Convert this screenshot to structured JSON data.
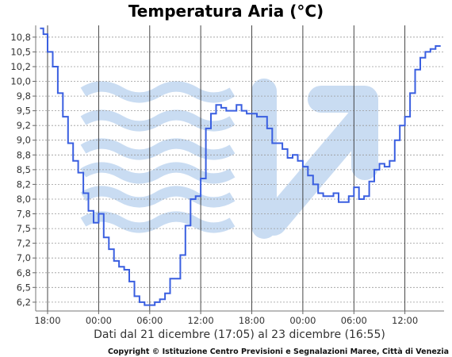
{
  "chart_data": {
    "type": "line",
    "title": "Temperatura Aria (°C)",
    "xlabel": "Dati dal 21 dicembre (17:05) al 23 dicembre (16:55)",
    "ylabel": "",
    "copyright": "Copyright © Istituzione Centro Previsioni e Segnalazioni Maree, Città di Venezia",
    "ylim": [
      6.05,
      10.9
    ],
    "xlim_hours": [
      16.6,
      64.6
    ],
    "y_ticks": [
      "6,2",
      "6,5",
      "6,8",
      "7,0",
      "7,2",
      "7,5",
      "7,8",
      "8,0",
      "8,2",
      "8,5",
      "8,8",
      "9,0",
      "9,2",
      "9,5",
      "9,8",
      "10,0",
      "10,2",
      "10,5",
      "10,8"
    ],
    "y_tick_values": [
      6.2,
      6.45,
      6.7,
      6.95,
      7.2,
      7.45,
      7.7,
      7.95,
      8.2,
      8.45,
      8.7,
      8.95,
      9.2,
      9.45,
      9.7,
      9.95,
      10.2,
      10.45,
      10.7
    ],
    "x_ticks": [
      {
        "label": "18:00",
        "hour": 18
      },
      {
        "label": "00:00",
        "hour": 24
      },
      {
        "label": "06:00",
        "hour": 30
      },
      {
        "label": "12:00",
        "hour": 36
      },
      {
        "label": "18:00",
        "hour": 42
      },
      {
        "label": "00:00",
        "hour": 48
      },
      {
        "label": "06:00",
        "hour": 54
      },
      {
        "label": "12:00",
        "hour": 60
      }
    ],
    "grid": true,
    "series": [
      {
        "color": "#3a5fe0",
        "x": [
          17.1,
          17.5,
          18.0,
          18.6,
          19.2,
          19.8,
          20.4,
          21.0,
          21.6,
          22.2,
          22.8,
          23.4,
          24.0,
          24.6,
          25.2,
          25.8,
          26.4,
          27.0,
          27.6,
          28.2,
          28.8,
          29.4,
          30.0,
          30.6,
          31.2,
          31.8,
          32.4,
          33.0,
          33.6,
          34.2,
          34.8,
          35.4,
          36.0,
          36.6,
          37.2,
          37.8,
          38.4,
          39.0,
          39.6,
          40.2,
          40.8,
          41.4,
          42.0,
          42.6,
          43.2,
          43.8,
          44.4,
          45.0,
          45.6,
          46.2,
          46.8,
          47.4,
          48.0,
          48.6,
          49.2,
          49.8,
          50.4,
          51.0,
          51.6,
          52.2,
          52.8,
          53.4,
          54.0,
          54.6,
          55.2,
          55.8,
          56.4,
          57.0,
          57.6,
          58.2,
          58.8,
          59.4,
          60.0,
          60.6,
          61.2,
          61.8,
          62.4,
          63.0,
          63.6,
          64.2
        ],
        "y": [
          10.85,
          10.75,
          10.45,
          10.2,
          9.75,
          9.35,
          8.9,
          8.6,
          8.4,
          8.05,
          7.75,
          7.55,
          7.7,
          7.3,
          7.1,
          6.9,
          6.8,
          6.75,
          6.55,
          6.3,
          6.2,
          6.15,
          6.15,
          6.2,
          6.25,
          6.35,
          6.6,
          6.6,
          7.0,
          7.5,
          7.95,
          8.0,
          8.3,
          9.15,
          9.4,
          9.55,
          9.5,
          9.45,
          9.45,
          9.55,
          9.45,
          9.4,
          9.4,
          9.35,
          9.35,
          9.15,
          8.9,
          8.9,
          8.8,
          8.65,
          8.7,
          8.6,
          8.5,
          8.35,
          8.2,
          8.05,
          8.0,
          8.0,
          8.05,
          7.9,
          7.9,
          8.0,
          8.15,
          7.95,
          8.0,
          8.25,
          8.45,
          8.55,
          8.5,
          8.6,
          8.95,
          9.2,
          9.35,
          9.75,
          10.15,
          10.35,
          10.45,
          10.5,
          10.55,
          10.55
        ]
      }
    ]
  },
  "watermark": {
    "color": "#c9dcf2",
    "name": "ismar-logo-watermark"
  }
}
